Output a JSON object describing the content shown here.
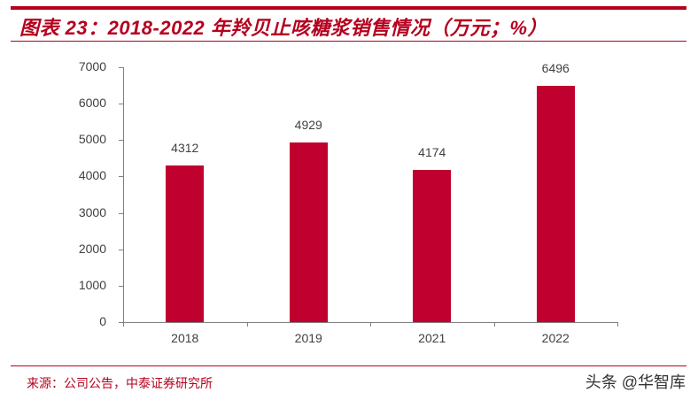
{
  "header": {
    "title": "图表 23：2018-2022 年羚贝止咳糖浆销售情况（万元；%）"
  },
  "footer": {
    "source": "来源：公司公告，中泰证券研究所",
    "watermark": "头条 @华智库"
  },
  "colors": {
    "accent": "#b5001e",
    "bar": "#c0002f",
    "axis": "#808080",
    "text": "#404040"
  },
  "chart_data": {
    "type": "bar",
    "title": "2018-2022 年羚贝止咳糖浆销售情况（万元；%）",
    "categories": [
      "2018",
      "2019",
      "2021",
      "2022"
    ],
    "values": [
      4312,
      4929,
      4174,
      6496
    ],
    "data_labels": [
      "4312",
      "4929",
      "4174",
      "6496"
    ],
    "xlabel": "",
    "ylabel": "",
    "ylim": [
      0,
      7000
    ],
    "yticks": [
      "0",
      "1000",
      "2000",
      "3000",
      "4000",
      "5000",
      "6000",
      "7000"
    ],
    "grid": false,
    "legend": null
  }
}
